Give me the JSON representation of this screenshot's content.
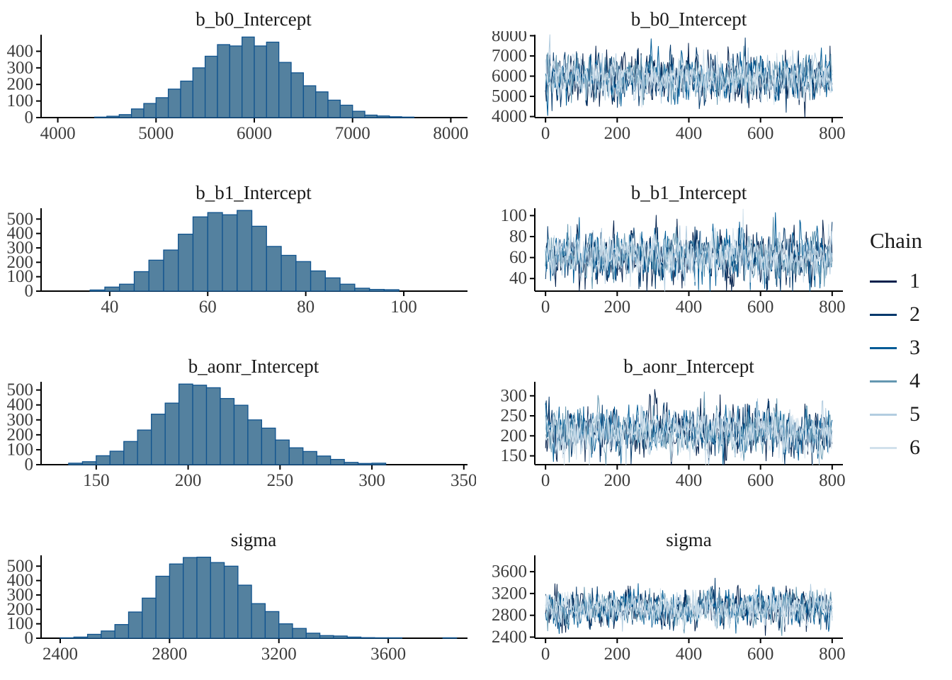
{
  "figure": {
    "background": "#ffffff",
    "axis_color": "#000000",
    "tick_label_color": "#3d3d3d",
    "title_color": "#1a1a1a"
  },
  "histogram_style": {
    "fill": "#54819f",
    "stroke": "#10538e"
  },
  "legend": {
    "title": "Chain",
    "items": [
      {
        "label": "1",
        "color": "#011f4b"
      },
      {
        "label": "2",
        "color": "#03396c"
      },
      {
        "label": "3",
        "color": "#005b96"
      },
      {
        "label": "4",
        "color": "#6497b1"
      },
      {
        "label": "5",
        "color": "#b3cde0"
      },
      {
        "label": "6",
        "color": "#d1e1ec"
      }
    ]
  },
  "chart_data": [
    {
      "type": "bar",
      "subtype": "histogram",
      "title": "b_b0_Intercept",
      "xlim": [
        3830,
        8170
      ],
      "x_ticks": [
        4000,
        5000,
        6000,
        7000,
        8000
      ],
      "ylim": [
        0,
        500
      ],
      "y_ticks": [
        0,
        100,
        200,
        300,
        400
      ],
      "bin_start": 4375,
      "bin_width": 125,
      "counts": [
        3,
        8,
        18,
        52,
        85,
        120,
        172,
        220,
        300,
        370,
        440,
        432,
        486,
        432,
        455,
        333,
        270,
        192,
        155,
        105,
        75,
        38,
        15,
        10,
        5,
        3
      ]
    },
    {
      "type": "line",
      "subtype": "trace",
      "title": "b_b0_Intercept",
      "xlim": [
        -30,
        830
      ],
      "x_ticks": [
        0,
        200,
        400,
        600,
        800
      ],
      "ylim": [
        3950,
        8050
      ],
      "y_ticks": [
        4000,
        5000,
        6000,
        7000,
        8000
      ],
      "n_iterations": 800,
      "n_chains": 6,
      "mean": 5900,
      "sd": 560,
      "chain_sd_scale": [
        1.08,
        1.04,
        1.0,
        0.96,
        0.93,
        0.9
      ]
    },
    {
      "type": "bar",
      "subtype": "histogram",
      "title": "b_b1_Intercept",
      "xlim": [
        26,
        113
      ],
      "x_ticks": [
        40,
        60,
        80,
        100
      ],
      "ylim": [
        0,
        575
      ],
      "y_ticks": [
        0,
        100,
        200,
        300,
        400,
        500
      ],
      "bin_start": 36,
      "bin_width": 3,
      "counts": [
        8,
        28,
        48,
        135,
        215,
        285,
        395,
        515,
        545,
        530,
        560,
        450,
        310,
        248,
        205,
        140,
        92,
        48,
        20,
        12,
        10
      ]
    },
    {
      "type": "line",
      "subtype": "trace",
      "title": "b_b1_Intercept",
      "xlim": [
        -30,
        830
      ],
      "x_ticks": [
        0,
        200,
        400,
        600,
        800
      ],
      "ylim": [
        28,
        107
      ],
      "y_ticks": [
        40,
        60,
        80,
        100
      ],
      "n_iterations": 800,
      "n_chains": 6,
      "mean": 62,
      "sd": 11.5,
      "chain_sd_scale": [
        1.08,
        1.04,
        1.0,
        0.96,
        0.93,
        0.9
      ]
    },
    {
      "type": "bar",
      "subtype": "histogram",
      "title": "b_aonr_Intercept",
      "xlim": [
        120,
        352
      ],
      "x_ticks": [
        150,
        200,
        250,
        300,
        350
      ],
      "ylim": [
        0,
        555
      ],
      "y_ticks": [
        0,
        100,
        200,
        300,
        400,
        500
      ],
      "bin_start": 135,
      "bin_width": 7.5,
      "counts": [
        10,
        20,
        60,
        90,
        155,
        232,
        338,
        412,
        540,
        532,
        515,
        443,
        398,
        300,
        245,
        165,
        113,
        88,
        58,
        35,
        15,
        8,
        10
      ]
    },
    {
      "type": "line",
      "subtype": "trace",
      "title": "b_aonr_Intercept",
      "xlim": [
        -30,
        830
      ],
      "x_ticks": [
        0,
        200,
        400,
        600,
        800
      ],
      "ylim": [
        128,
        335
      ],
      "y_ticks": [
        150,
        200,
        250,
        300
      ],
      "n_iterations": 800,
      "n_chains": 6,
      "mean": 210,
      "sd": 30,
      "chain_sd_scale": [
        1.08,
        1.04,
        1.0,
        0.96,
        0.93,
        0.9
      ]
    },
    {
      "type": "bar",
      "subtype": "histogram",
      "title": "sigma",
      "xlim": [
        2330,
        3890
      ],
      "x_ticks": [
        2400,
        2800,
        3200,
        3600
      ],
      "ylim": [
        0,
        575
      ],
      "y_ticks": [
        0,
        100,
        200,
        300,
        400,
        500
      ],
      "bin_start": 2400,
      "bin_width": 50,
      "counts": [
        3,
        8,
        27,
        50,
        95,
        182,
        278,
        430,
        515,
        560,
        562,
        525,
        500,
        368,
        240,
        185,
        100,
        68,
        35,
        18,
        15,
        8,
        4,
        3,
        3,
        0,
        0,
        0,
        3
      ]
    },
    {
      "type": "line",
      "subtype": "trace",
      "title": "sigma",
      "xlim": [
        -30,
        830
      ],
      "x_ticks": [
        0,
        200,
        400,
        600,
        800
      ],
      "ylim": [
        2380,
        3900
      ],
      "y_ticks": [
        2400,
        2800,
        3200,
        3600
      ],
      "n_iterations": 800,
      "n_chains": 6,
      "mean": 2930,
      "sd": 165,
      "chain_sd_scale": [
        1.08,
        1.04,
        1.0,
        0.96,
        0.93,
        0.9
      ]
    }
  ]
}
